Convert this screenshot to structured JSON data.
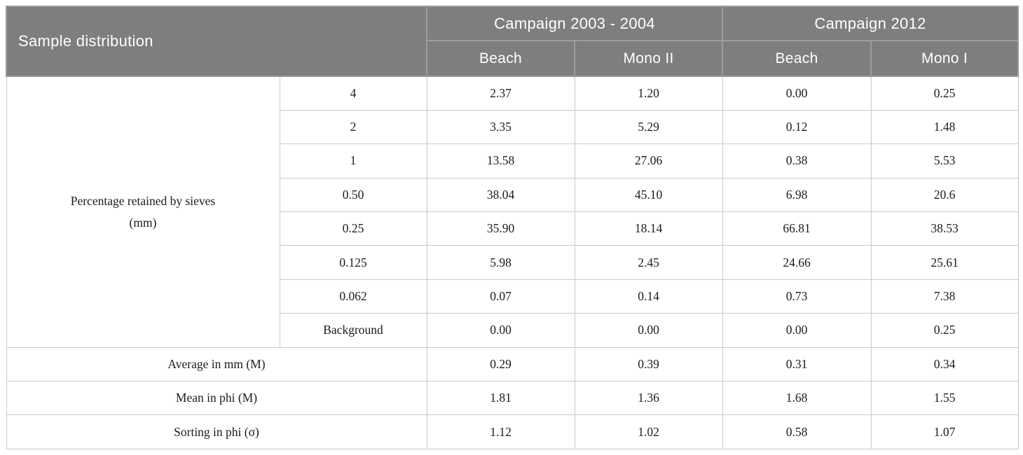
{
  "colors": {
    "header_bg": "#7e7e7e",
    "header_text": "#ffffff",
    "header_divider": "#9c9c9c",
    "border": "#c9c9c9",
    "body_text": "#1c1c1c",
    "page_bg": "#ffffff"
  },
  "table": {
    "corner_label": "Sample distribution",
    "column_groups": [
      {
        "label": "Campaign 2003 - 2004",
        "columns": [
          "Beach",
          "Mono II"
        ]
      },
      {
        "label": "Campaign 2012",
        "columns": [
          "Beach",
          "Mono I"
        ]
      }
    ],
    "sieve_section_label_lines": [
      "Percentage retained by sieves",
      "(mm)"
    ],
    "sieve_rows": [
      {
        "sieve": "4",
        "values": [
          "2.37",
          "1.20",
          "0.00",
          "0.25"
        ]
      },
      {
        "sieve": "2",
        "values": [
          "3.35",
          "5.29",
          "0.12",
          "1.48"
        ]
      },
      {
        "sieve": "1",
        "values": [
          "13.58",
          "27.06",
          "0.38",
          "5.53"
        ]
      },
      {
        "sieve": "0.50",
        "values": [
          "38.04",
          "45.10",
          "6.98",
          "20.6"
        ]
      },
      {
        "sieve": "0.25",
        "values": [
          "35.90",
          "18.14",
          "66.81",
          "38.53"
        ]
      },
      {
        "sieve": "0.125",
        "values": [
          "5.98",
          "2.45",
          "24.66",
          "25.61"
        ]
      },
      {
        "sieve": "0.062",
        "values": [
          "0.07",
          "0.14",
          "0.73",
          "7.38"
        ]
      },
      {
        "sieve": "Background",
        "values": [
          "0.00",
          "0.00",
          "0.00",
          "0.25"
        ]
      }
    ],
    "summary_rows": [
      {
        "label": "Average in mm (M)",
        "values": [
          "0.29",
          "0.39",
          "0.31",
          "0.34"
        ]
      },
      {
        "label": "Mean in phi (M)",
        "values": [
          "1.81",
          "1.36",
          "1.68",
          "1.55"
        ]
      },
      {
        "label": "Sorting in phi (σ)",
        "values": [
          "1.12",
          "1.02",
          "0.58",
          "1.07"
        ]
      }
    ]
  }
}
